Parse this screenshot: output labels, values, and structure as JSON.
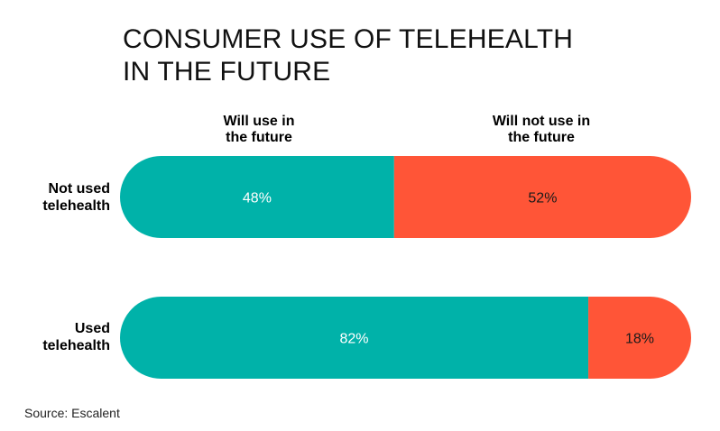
{
  "header": {
    "title_line1": "CONSUMER USE OF TELEHEALTH",
    "title_line2": "IN THE FUTURE"
  },
  "chart_data": {
    "type": "bar",
    "orientation": "horizontal",
    "stacked": true,
    "normalized": true,
    "categories": [
      "Not used telehealth",
      "Used telehealth"
    ],
    "category_lines": [
      [
        "Not used",
        "telehealth"
      ],
      [
        "Used",
        "telehealth"
      ]
    ],
    "series": [
      {
        "name": "Will use in the future",
        "name_lines": [
          "Will use in",
          "the future"
        ],
        "values": [
          48,
          82
        ],
        "color": "#00b2a9"
      },
      {
        "name": "Will not use in the future",
        "name_lines": [
          "Will not use in",
          "the future"
        ],
        "values": [
          52,
          18
        ],
        "color": "#ff5537"
      }
    ],
    "data_labels": [
      [
        "48%",
        "82%"
      ],
      [
        "52%",
        "18%"
      ]
    ],
    "xlim": [
      0,
      100
    ],
    "grid": false,
    "legend": "top"
  },
  "source": "Source: Escalent"
}
